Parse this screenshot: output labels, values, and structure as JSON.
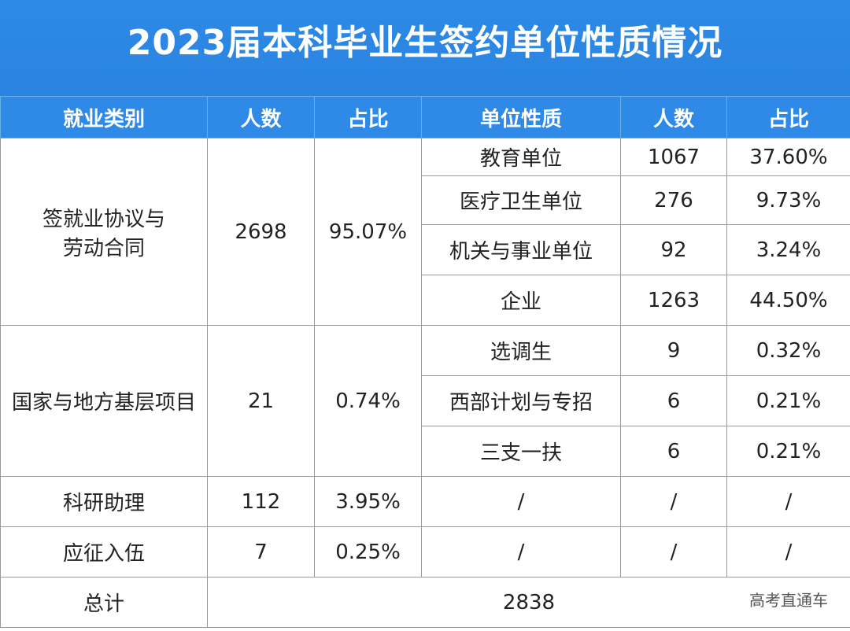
{
  "title": "2023届本科毕业生签约单位性质情况",
  "headers": [
    "就业类别",
    "人数",
    "占比",
    "单位性质",
    "人数",
    "占比"
  ],
  "groups": [
    {
      "category": "签就业协议与劳动合同",
      "category_line1": "签就业协议与",
      "category_line2": "劳动合同",
      "count": "2698",
      "ratio": "95.07%",
      "subs": [
        {
          "unit": "教育单位",
          "count": "1067",
          "ratio": "37.60%"
        },
        {
          "unit": "医疗卫生单位",
          "count": "276",
          "ratio": "9.73%"
        },
        {
          "unit": "机关与事业单位",
          "count": "92",
          "ratio": "3.24%"
        },
        {
          "unit": "企业",
          "count": "1263",
          "ratio": "44.50%"
        }
      ]
    },
    {
      "category": "国家与地方基层项目",
      "count": "21",
      "ratio": "0.74%",
      "subs": [
        {
          "unit": "选调生",
          "count": "9",
          "ratio": "0.32%"
        },
        {
          "unit": "西部计划与专招",
          "count": "6",
          "ratio": "0.21%"
        },
        {
          "unit": "三支一扶",
          "count": "6",
          "ratio": "0.21%"
        }
      ]
    },
    {
      "category": "科研助理",
      "count": "112",
      "ratio": "3.95%",
      "subs": [
        {
          "unit": "/",
          "count": "/",
          "ratio": "/"
        }
      ]
    },
    {
      "category": "应征入伍",
      "count": "7",
      "ratio": "0.25%",
      "subs": [
        {
          "unit": "/",
          "count": "/",
          "ratio": "/"
        }
      ]
    }
  ],
  "total": {
    "label": "总计",
    "value": "2838"
  },
  "watermark": "高考直通车"
}
